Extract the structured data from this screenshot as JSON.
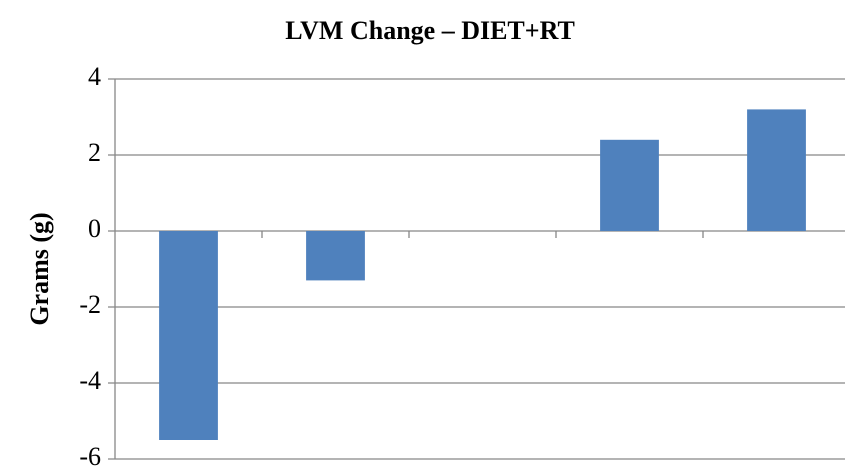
{
  "chart_data": {
    "type": "bar",
    "title": "LVM Change – DIET+RT",
    "ylabel": "Grams (g)",
    "categories": [
      null,
      null,
      null,
      null,
      null
    ],
    "values": [
      -5.5,
      -1.3,
      0,
      2.4,
      3.2
    ],
    "color": "#4f81bd",
    "ylim": [
      -6,
      4
    ],
    "yticks": [
      -6,
      -4,
      -2,
      0,
      2,
      4
    ],
    "grid": true
  }
}
